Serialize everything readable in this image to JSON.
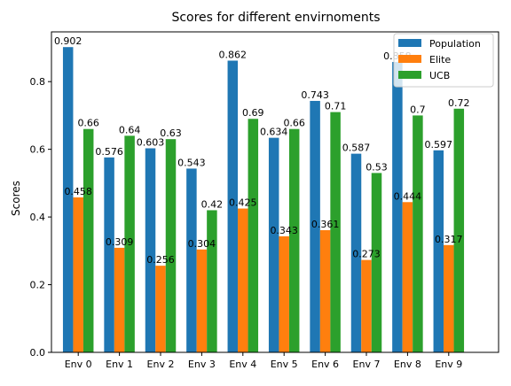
{
  "chart_data": {
    "type": "bar",
    "title": "Scores for different envirnoments",
    "xlabel": "",
    "ylabel": "Scores",
    "ylim": [
      0,
      0.947
    ],
    "yticks": [
      0.0,
      0.2,
      0.4,
      0.6,
      0.8
    ],
    "ytick_labels": [
      "0.0",
      "0.2",
      "0.4",
      "0.6",
      "0.8"
    ],
    "categories": [
      "Env 0",
      "Env 1",
      "Env 2",
      "Env 3",
      "Env 4",
      "Env 5",
      "Env 6",
      "Env 7",
      "Env 8",
      "Env 9"
    ],
    "series": [
      {
        "name": "Population",
        "color": "#1f77b4",
        "values": [
          0.902,
          0.576,
          0.603,
          0.543,
          0.862,
          0.634,
          0.743,
          0.587,
          0.858,
          0.597
        ],
        "labels": [
          "0.902",
          "0.576",
          "0.603",
          "0.543",
          "0.862",
          "0.634",
          "0.743",
          "0.587",
          "0.858",
          "0.597"
        ]
      },
      {
        "name": "Elite",
        "color": "#ff7f0e",
        "values": [
          0.458,
          0.309,
          0.256,
          0.304,
          0.425,
          0.343,
          0.361,
          0.273,
          0.444,
          0.317
        ],
        "labels": [
          "0.458",
          "0.309",
          "0.256",
          "0.304",
          "0.425",
          "0.343",
          "0.361",
          "0.273",
          "0.444",
          "0.317"
        ]
      },
      {
        "name": "UCB",
        "color": "#2ca02c",
        "values": [
          0.66,
          0.64,
          0.63,
          0.42,
          0.69,
          0.66,
          0.71,
          0.53,
          0.7,
          0.72
        ],
        "labels": [
          "0.66",
          "0.64",
          "0.63",
          "0.42",
          "0.69",
          "0.66",
          "0.71",
          "0.53",
          "0.7",
          "0.72"
        ]
      }
    ],
    "grid": false,
    "legend_position": "top-right"
  }
}
